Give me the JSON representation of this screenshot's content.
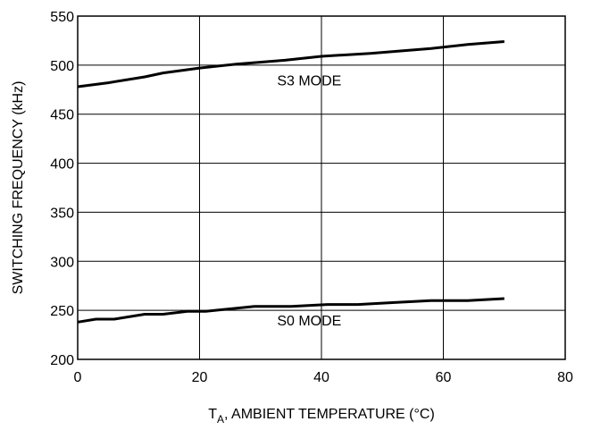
{
  "chart_data": {
    "type": "line",
    "title": "",
    "xlabel": "T",
    "xlabel_subscript": "A",
    "xlabel_rest": ", AMBIENT TEMPERATURE (°C)",
    "ylabel": "SWITCHING FREQUENCY (kHz)",
    "xlim": [
      0,
      80
    ],
    "ylim": [
      200,
      550
    ],
    "xticks": [
      0,
      20,
      40,
      60,
      80
    ],
    "yticks": [
      200,
      250,
      300,
      350,
      400,
      450,
      500,
      550
    ],
    "xtick_labels": [
      "0",
      "20",
      "40",
      "60",
      "80"
    ],
    "ytick_labels": [
      "200",
      "250",
      "300",
      "350",
      "400",
      "450",
      "500",
      "550"
    ],
    "grid": true,
    "line_color": "#000000",
    "series": [
      {
        "name": "S3 MODE",
        "x": [
          0,
          5,
          11,
          14,
          20,
          26,
          34,
          40,
          48,
          58,
          64,
          70
        ],
        "y": [
          478,
          482,
          488,
          492,
          497,
          501,
          505,
          509,
          512,
          517,
          521,
          524
        ]
      },
      {
        "name": "S0 MODE",
        "x": [
          0,
          3,
          6,
          11,
          14,
          18,
          21,
          29,
          35,
          41,
          46,
          52,
          58,
          64,
          70
        ],
        "y": [
          238,
          241,
          241,
          246,
          246,
          249,
          249,
          254,
          254,
          256,
          256,
          258,
          260,
          260,
          262
        ]
      }
    ],
    "annotations": [
      {
        "text": "S3 MODE",
        "x": 38,
        "y": 485
      },
      {
        "text": "S0 MODE",
        "x": 38,
        "y": 240
      }
    ]
  }
}
